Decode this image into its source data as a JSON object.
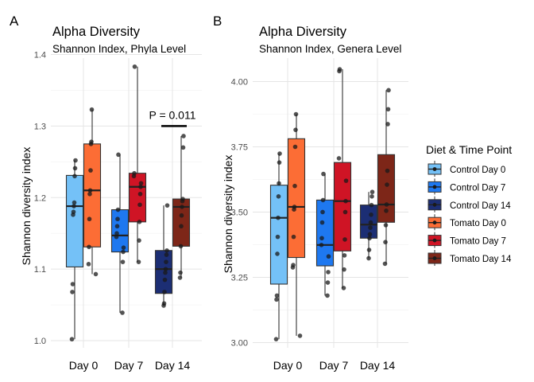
{
  "colors": {
    "Control Day 0": "#74c1f7",
    "Control Day 7": "#1e78f0",
    "Control Day 14": "#1c2e74",
    "Tomato Day 0": "#fc6d35",
    "Tomato Day 7": "#cf1425",
    "Tomato Day 14": "#7d2618"
  },
  "legend": {
    "title": "Diet & Time Point",
    "items": [
      "Control Day 0",
      "Control Day 7",
      "Control Day 14",
      "Tomato Day 0",
      "Tomato Day 7",
      "Tomato Day 14"
    ]
  },
  "chart_data": [
    {
      "panel_label": "A",
      "type": "box",
      "title": "Alpha Diversity",
      "subtitle": "Shannon Index, Phyla Level",
      "ylabel": "Shannon diversity index",
      "xlabel": "",
      "categories": [
        "Day 0",
        "Day 7",
        "Day 14"
      ],
      "ylim": [
        0.99,
        1.395
      ],
      "yticks": [
        "1.0",
        "1.1",
        "1.2",
        "1.3",
        "1.4"
      ],
      "ytick_values": [
        1.0,
        1.1,
        1.2,
        1.3,
        1.4
      ],
      "grid": true,
      "annotation": {
        "text": "P = 0.011",
        "category": "Day 14",
        "y": 1.3
      },
      "groups": [
        {
          "name": "Control Day 0",
          "category": "Day 0",
          "diet": "Control",
          "min": 1.002,
          "q1": 1.103,
          "median": 1.188,
          "q3": 1.231,
          "max": 1.252,
          "points": [
            1.252,
            1.241,
            1.23,
            1.193,
            1.188,
            1.18,
            1.176,
            1.079,
            1.068,
            1.002
          ]
        },
        {
          "name": "Tomato Day 0",
          "category": "Day 0",
          "diet": "Tomato",
          "min": 1.093,
          "q1": 1.131,
          "median": 1.21,
          "q3": 1.275,
          "max": 1.323,
          "points": [
            1.323,
            1.278,
            1.275,
            1.238,
            1.21,
            1.205,
            1.17,
            1.131,
            1.107,
            1.093
          ]
        },
        {
          "name": "Control Day 7",
          "category": "Day 7",
          "diet": "Control",
          "min": 1.039,
          "q1": 1.124,
          "median": 1.147,
          "q3": 1.183,
          "max": 1.26,
          "points": [
            1.26,
            1.183,
            1.17,
            1.16,
            1.15,
            1.145,
            1.13,
            1.124,
            1.11,
            1.039
          ]
        },
        {
          "name": "Tomato Day 7",
          "category": "Day 7",
          "diet": "Tomato",
          "min": 1.11,
          "q1": 1.166,
          "median": 1.215,
          "q3": 1.234,
          "max": 1.383,
          "points": [
            1.383,
            1.234,
            1.23,
            1.22,
            1.215,
            1.205,
            1.19,
            1.166,
            1.14,
            1.11
          ]
        },
        {
          "name": "Control Day 14",
          "category": "Day 14",
          "diet": "Control",
          "min": 1.049,
          "q1": 1.066,
          "median": 1.1,
          "q3": 1.126,
          "max": 1.189,
          "points": [
            1.189,
            1.126,
            1.12,
            1.11,
            1.1,
            1.095,
            1.085,
            1.068,
            1.052,
            1.049
          ]
        },
        {
          "name": "Tomato Day 14",
          "category": "Day 14",
          "diet": "Tomato",
          "min": 1.088,
          "q1": 1.132,
          "median": 1.187,
          "q3": 1.198,
          "max": 1.286,
          "points": [
            1.286,
            1.27,
            1.198,
            1.195,
            1.187,
            1.175,
            1.16,
            1.132,
            1.095,
            1.088
          ]
        }
      ]
    },
    {
      "panel_label": "B",
      "type": "box",
      "title": "Alpha Diversity",
      "subtitle": "Shannon Index, Genera Level",
      "ylabel": "Shannon diversity index",
      "xlabel": "",
      "categories": [
        "Day 0",
        "Day 7",
        "Day 14"
      ],
      "ylim": [
        2.98,
        4.09
      ],
      "yticks": [
        "3.00",
        "3.25",
        "3.50",
        "3.75",
        "4.00"
      ],
      "ytick_values": [
        3.0,
        3.25,
        3.5,
        3.75,
        4.0
      ],
      "grid": true,
      "groups": [
        {
          "name": "Control Day 0",
          "category": "Day 0",
          "diet": "Control",
          "min": 3.013,
          "q1": 3.224,
          "median": 3.478,
          "q3": 3.603,
          "max": 3.724,
          "points": [
            3.724,
            3.69,
            3.61,
            3.56,
            3.478,
            3.405,
            3.34,
            3.18,
            3.165,
            3.013
          ]
        },
        {
          "name": "Tomato Day 0",
          "category": "Day 0",
          "diet": "Tomato",
          "min": 3.026,
          "q1": 3.326,
          "median": 3.52,
          "q3": 3.781,
          "max": 3.875,
          "points": [
            3.875,
            3.815,
            3.75,
            3.6,
            3.52,
            3.51,
            3.405,
            3.297,
            3.288,
            3.026
          ]
        },
        {
          "name": "Control Day 7",
          "category": "Day 7",
          "diet": "Control",
          "min": 3.18,
          "q1": 3.294,
          "median": 3.374,
          "q3": 3.546,
          "max": 3.646,
          "points": [
            3.646,
            3.546,
            3.5,
            3.46,
            3.4,
            3.374,
            3.33,
            3.27,
            3.23,
            3.18
          ]
        },
        {
          "name": "Tomato Day 7",
          "category": "Day 7",
          "diet": "Tomato",
          "min": 3.209,
          "q1": 3.351,
          "median": 3.542,
          "q3": 3.69,
          "max": 4.047,
          "points": [
            4.047,
            4.04,
            3.706,
            3.62,
            3.542,
            3.5,
            3.395,
            3.334,
            3.28,
            3.209
          ]
        },
        {
          "name": "Control Day 14",
          "category": "Day 14",
          "diet": "Control",
          "min": 3.323,
          "q1": 3.4,
          "median": 3.452,
          "q3": 3.527,
          "max": 3.577,
          "points": [
            3.577,
            3.56,
            3.527,
            3.49,
            3.46,
            3.44,
            3.415,
            3.4,
            3.355,
            3.323
          ]
        },
        {
          "name": "Tomato Day 14",
          "category": "Day 14",
          "diet": "Tomato",
          "min": 3.302,
          "q1": 3.461,
          "median": 3.529,
          "q3": 3.72,
          "max": 3.967,
          "points": [
            3.967,
            3.894,
            3.837,
            3.658,
            3.605,
            3.529,
            3.505,
            3.45,
            3.385,
            3.302
          ]
        }
      ]
    }
  ]
}
